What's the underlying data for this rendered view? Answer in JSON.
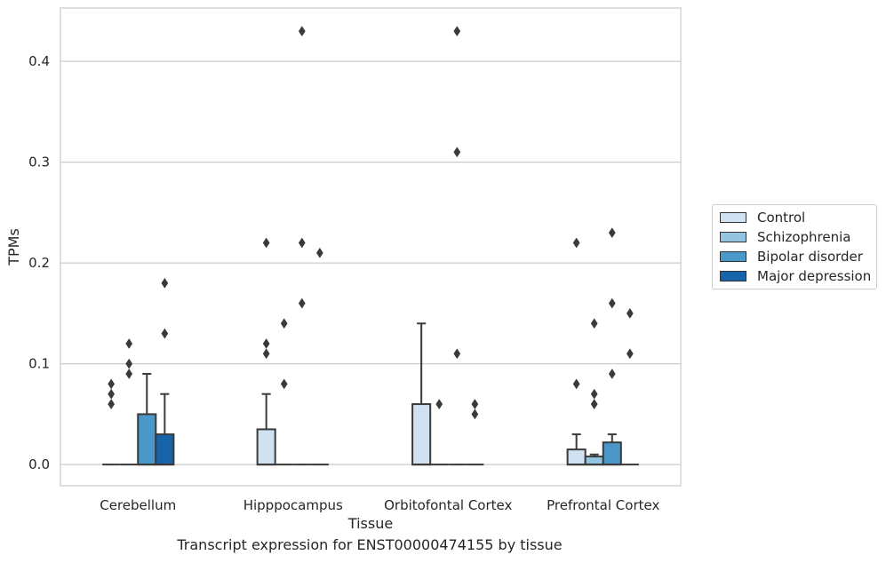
{
  "chart_data": {
    "type": "box",
    "xlabel": "Tissue",
    "ylabel": "TPMs",
    "caption": "Transcript expression for ENST00000474155 by tissue",
    "categories": [
      "Cerebellum",
      "Hipppocampus",
      "Orbitofontal Cortex",
      "Prefrontal Cortex"
    ],
    "ylim": [
      -0.021,
      0.453
    ],
    "yticks": [
      0.0,
      0.1,
      0.2,
      0.3,
      0.4
    ],
    "ytick_labels": [
      "0.0",
      "0.1",
      "0.2",
      "0.3",
      "0.4"
    ],
    "grid": "horizontal",
    "legend_position": "right",
    "series": [
      {
        "name": "Control",
        "color": "#d0e1f2",
        "boxes": [
          {
            "q1": 0,
            "median": 0,
            "q3": 0,
            "whisker_low": 0,
            "whisker_high": 0,
            "outliers": [
              0.06,
              0.07,
              0.08
            ]
          },
          {
            "q1": 0,
            "median": 0,
            "q3": 0.035,
            "whisker_low": 0,
            "whisker_high": 0.07,
            "outliers": [
              0.11,
              0.12,
              0.22
            ]
          },
          {
            "q1": 0,
            "median": 0,
            "q3": 0.06,
            "whisker_low": 0,
            "whisker_high": 0.14,
            "outliers": []
          },
          {
            "q1": 0,
            "median": 0,
            "q3": 0.015,
            "whisker_low": 0,
            "whisker_high": 0.03,
            "outliers": [
              0.08,
              0.22
            ]
          }
        ]
      },
      {
        "name": "Schizophrenia",
        "color": "#94c4df",
        "boxes": [
          {
            "q1": 0,
            "median": 0,
            "q3": 0,
            "whisker_low": 0,
            "whisker_high": 0,
            "outliers": [
              0.09,
              0.1,
              0.12
            ]
          },
          {
            "q1": 0,
            "median": 0,
            "q3": 0,
            "whisker_low": 0,
            "whisker_high": 0,
            "outliers": [
              0.08,
              0.14
            ]
          },
          {
            "q1": 0,
            "median": 0,
            "q3": 0,
            "whisker_low": 0,
            "whisker_high": 0,
            "outliers": [
              0.06
            ]
          },
          {
            "q1": 0,
            "median": 0,
            "q3": 0.008,
            "whisker_low": 0,
            "whisker_high": 0.01,
            "outliers": [
              0.06,
              0.07,
              0.14
            ]
          }
        ]
      },
      {
        "name": "Bipolar disorder",
        "color": "#4a98c9",
        "boxes": [
          {
            "q1": 0,
            "median": 0,
            "q3": 0.05,
            "whisker_low": 0,
            "whisker_high": 0.09,
            "outliers": []
          },
          {
            "q1": 0,
            "median": 0,
            "q3": 0,
            "whisker_low": 0,
            "whisker_high": 0,
            "outliers": [
              0.16,
              0.22,
              0.43
            ]
          },
          {
            "q1": 0,
            "median": 0,
            "q3": 0,
            "whisker_low": 0,
            "whisker_high": 0,
            "outliers": [
              0.11,
              0.31,
              0.43
            ]
          },
          {
            "q1": 0,
            "median": 0,
            "q3": 0.022,
            "whisker_low": 0,
            "whisker_high": 0.03,
            "outliers": [
              0.09,
              0.16,
              0.23
            ]
          }
        ]
      },
      {
        "name": "Major depression",
        "color": "#1764ab",
        "boxes": [
          {
            "q1": 0,
            "median": 0,
            "q3": 0.03,
            "whisker_low": 0,
            "whisker_high": 0.07,
            "outliers": [
              0.13,
              0.18
            ]
          },
          {
            "q1": 0,
            "median": 0,
            "q3": 0,
            "whisker_low": 0,
            "whisker_high": 0,
            "outliers": [
              0.21
            ]
          },
          {
            "q1": 0,
            "median": 0,
            "q3": 0,
            "whisker_low": 0,
            "whisker_high": 0,
            "outliers": [
              0.05,
              0.06
            ]
          },
          {
            "q1": 0,
            "median": 0,
            "q3": 0,
            "whisker_low": 0,
            "whisker_high": 0,
            "outliers": [
              0.11,
              0.15
            ]
          }
        ]
      }
    ]
  }
}
